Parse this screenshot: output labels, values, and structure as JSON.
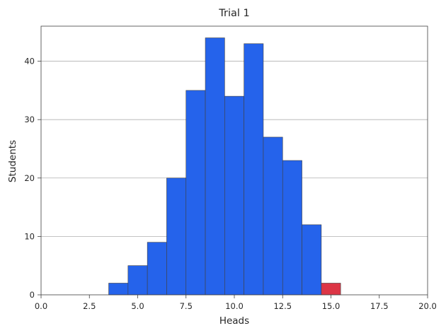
{
  "chart_data": {
    "type": "bar",
    "title": "Trial 1",
    "xlabel": "Heads",
    "ylabel": "Students",
    "xlim": [
      0,
      20
    ],
    "ylim": [
      0,
      46
    ],
    "xticks": [
      0.0,
      2.5,
      5.0,
      7.5,
      10.0,
      12.5,
      15.0,
      17.5,
      20.0
    ],
    "xtick_labels": [
      "0.0",
      "2.5",
      "5.0",
      "7.5",
      "10.0",
      "12.5",
      "15.0",
      "17.5",
      "20.0"
    ],
    "yticks": [
      0,
      10,
      20,
      30,
      40
    ],
    "ytick_labels": [
      "0",
      "10",
      "20",
      "30",
      "40"
    ],
    "grid": "y",
    "bin_width": 1,
    "bars": [
      {
        "x": 4,
        "value": 2,
        "color": "#2563eb"
      },
      {
        "x": 5,
        "value": 5,
        "color": "#2563eb"
      },
      {
        "x": 6,
        "value": 9,
        "color": "#2563eb"
      },
      {
        "x": 7,
        "value": 20,
        "color": "#2563eb"
      },
      {
        "x": 8,
        "value": 35,
        "color": "#2563eb"
      },
      {
        "x": 9,
        "value": 44,
        "color": "#2563eb"
      },
      {
        "x": 10,
        "value": 34,
        "color": "#2563eb"
      },
      {
        "x": 11,
        "value": 43,
        "color": "#2563eb"
      },
      {
        "x": 12,
        "value": 27,
        "color": "#2563eb"
      },
      {
        "x": 13,
        "value": 23,
        "color": "#2563eb"
      },
      {
        "x": 14,
        "value": 12,
        "color": "#2563eb"
      },
      {
        "x": 15,
        "value": 2,
        "color": "#dc3545"
      }
    ],
    "colors": {
      "bar": "#2563eb",
      "highlight": "#dc3545",
      "edge": "#404040",
      "grid": "#b0b0b0"
    }
  }
}
